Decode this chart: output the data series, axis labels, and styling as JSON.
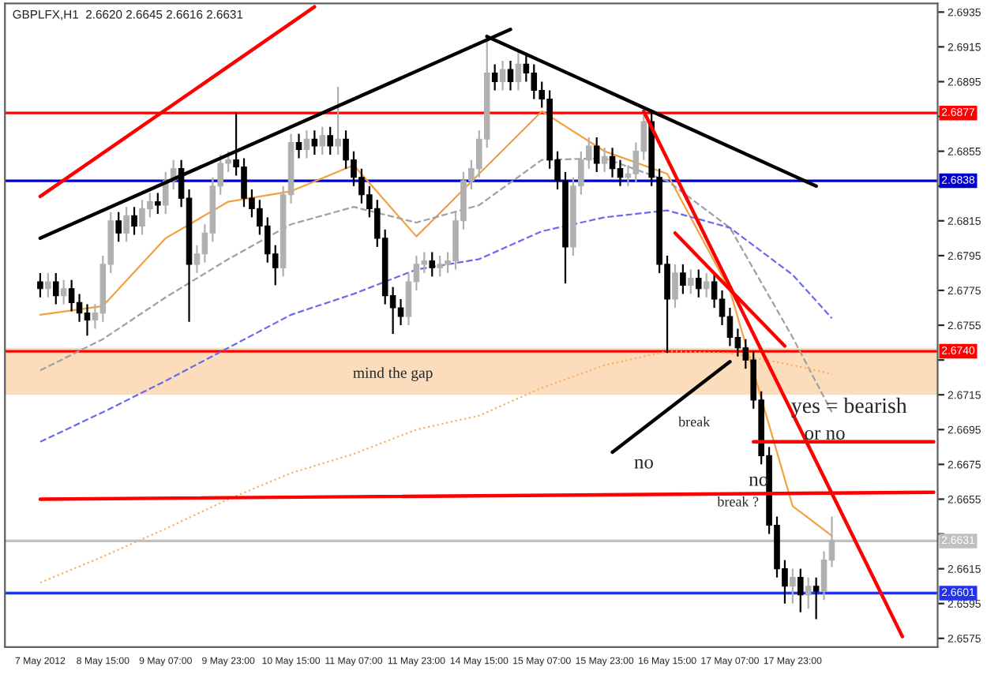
{
  "chart_data": {
    "type": "candlestick",
    "title": "GBPLFX,H1  2.6620 2.6645 2.6616 2.6631",
    "categories": [
      "7 May 2012",
      null,
      null,
      null,
      null,
      null,
      null,
      null,
      "8 May 15:00",
      null,
      null,
      null,
      null,
      null,
      null,
      null,
      "9 May 07:00",
      null,
      null,
      null,
      null,
      null,
      null,
      null,
      "9 May 23:00",
      null,
      null,
      null,
      null,
      null,
      null,
      null,
      "10 May 15:00",
      null,
      null,
      null,
      null,
      null,
      null,
      null,
      "11 May 07:00",
      null,
      null,
      null,
      null,
      null,
      null,
      null,
      "11 May 23:00",
      null,
      null,
      null,
      null,
      null,
      null,
      null,
      "14 May 15:00",
      null,
      null,
      null,
      null,
      null,
      null,
      null,
      "15 May 07:00",
      null,
      null,
      null,
      null,
      null,
      null,
      null,
      "15 May 23:00",
      null,
      null,
      null,
      null,
      null,
      null,
      null,
      "16 May 15:00",
      null,
      null,
      null,
      null,
      null,
      null,
      null,
      "17 May 07:00",
      null,
      null,
      null,
      null,
      null,
      null,
      null,
      "17 May 23:00",
      null,
      null,
      null,
      null,
      null,
      null,
      null,
      null,
      null,
      null,
      null,
      null,
      null,
      null,
      null,
      null,
      null,
      null
    ],
    "ohlc": [
      [
        2.678,
        2.6785,
        2.6771,
        2.6776
      ],
      [
        2.6776,
        2.6785,
        2.6771,
        2.678
      ],
      [
        2.678,
        2.6785,
        2.6767,
        2.6772
      ],
      [
        2.6772,
        2.6781,
        2.6767,
        2.6776
      ],
      [
        2.6776,
        2.6781,
        2.6763,
        2.6768
      ],
      [
        2.6768,
        2.6773,
        2.6757,
        2.6762
      ],
      [
        2.6762,
        2.6767,
        2.6749,
        2.6758
      ],
      [
        2.6758,
        2.6767,
        2.6753,
        2.6762
      ],
      [
        2.6762,
        2.6795,
        2.6757,
        2.679
      ],
      [
        2.679,
        2.682,
        2.6785,
        2.6815
      ],
      [
        2.6815,
        2.682,
        2.6803,
        2.6808
      ],
      [
        2.6808,
        2.6823,
        2.6803,
        2.6818
      ],
      [
        2.6818,
        2.6823,
        2.6807,
        2.6812
      ],
      [
        2.6812,
        2.6827,
        2.6807,
        2.6822
      ],
      [
        2.6822,
        2.6831,
        2.6817,
        2.6826
      ],
      [
        2.6826,
        2.6831,
        2.6819,
        2.6824
      ],
      [
        2.6824,
        2.6843,
        2.6819,
        2.6838
      ],
      [
        2.6838,
        2.685,
        2.6833,
        2.6845
      ],
      [
        2.6845,
        2.685,
        2.6823,
        2.6828
      ],
      [
        2.6828,
        2.6833,
        2.6757,
        2.679
      ],
      [
        2.679,
        2.6801,
        2.6785,
        2.6796
      ],
      [
        2.6796,
        2.6813,
        2.6791,
        2.6808
      ],
      [
        2.6808,
        2.684,
        2.6803,
        2.6835
      ],
      [
        2.6835,
        2.6853,
        2.683,
        2.6848
      ],
      [
        2.6848,
        2.6855,
        2.6843,
        2.685
      ],
      [
        2.685,
        2.6877,
        2.6841,
        2.6846
      ],
      [
        2.6846,
        2.6851,
        2.6823,
        2.6828
      ],
      [
        2.6828,
        2.6833,
        2.6817,
        2.6822
      ],
      [
        2.6822,
        2.6827,
        2.6807,
        2.6812
      ],
      [
        2.6812,
        2.6817,
        2.6791,
        2.6796
      ],
      [
        2.6796,
        2.6801,
        2.6778,
        2.6788
      ],
      [
        2.6788,
        2.6835,
        2.6783,
        2.683
      ],
      [
        2.683,
        2.6865,
        2.6825,
        2.686
      ],
      [
        2.686,
        2.6865,
        2.6851,
        2.6856
      ],
      [
        2.6856,
        2.6867,
        2.6851,
        2.6862
      ],
      [
        2.6862,
        2.6867,
        2.6853,
        2.6858
      ],
      [
        2.6858,
        2.6869,
        2.6853,
        2.6864
      ],
      [
        2.6864,
        2.6869,
        2.6853,
        2.6858
      ],
      [
        2.6858,
        2.6892,
        2.6853,
        2.6862
      ],
      [
        2.6862,
        2.6867,
        2.6845,
        2.685
      ],
      [
        2.685,
        2.6855,
        2.6835,
        2.684
      ],
      [
        2.684,
        2.6845,
        2.6825,
        2.683
      ],
      [
        2.683,
        2.6835,
        2.6817,
        2.6822
      ],
      [
        2.6822,
        2.6827,
        2.68,
        2.6805
      ],
      [
        2.6805,
        2.681,
        2.6767,
        2.6772
      ],
      [
        2.6772,
        2.6777,
        2.675,
        2.6765
      ],
      [
        2.6765,
        2.677,
        2.6755,
        2.676
      ],
      [
        2.676,
        2.6785,
        2.6755,
        2.678
      ],
      [
        2.678,
        2.6795,
        2.6775,
        2.679
      ],
      [
        2.679,
        2.6797,
        2.6785,
        2.6792
      ],
      [
        2.6792,
        2.6797,
        2.6783,
        2.6788
      ],
      [
        2.6788,
        2.6795,
        2.6783,
        2.679
      ],
      [
        2.679,
        2.6797,
        2.6785,
        2.6792
      ],
      [
        2.6792,
        2.682,
        2.6787,
        2.6815
      ],
      [
        2.6815,
        2.6843,
        2.681,
        2.6838
      ],
      [
        2.6838,
        2.685,
        2.6833,
        2.6845
      ],
      [
        2.6845,
        2.6867,
        2.684,
        2.6862
      ],
      [
        2.6862,
        2.692,
        2.6857,
        2.69
      ],
      [
        2.69,
        2.6905,
        2.689,
        2.6895
      ],
      [
        2.6895,
        2.6907,
        2.689,
        2.6902
      ],
      [
        2.6902,
        2.6907,
        2.689,
        2.6895
      ],
      [
        2.6895,
        2.6912,
        2.689,
        2.6905
      ],
      [
        2.6905,
        2.691,
        2.6895,
        2.69
      ],
      [
        2.69,
        2.6905,
        2.6885,
        2.689
      ],
      [
        2.689,
        2.6895,
        2.688,
        2.6885
      ],
      [
        2.6885,
        2.689,
        2.6845,
        2.685
      ],
      [
        2.685,
        2.6855,
        2.6833,
        2.6838
      ],
      [
        2.6838,
        2.6843,
        2.6779,
        2.68
      ],
      [
        2.68,
        2.684,
        2.6795,
        2.6835
      ],
      [
        2.6835,
        2.6855,
        2.683,
        2.685
      ],
      [
        2.685,
        2.6863,
        2.6845,
        2.6858
      ],
      [
        2.6858,
        2.6863,
        2.6843,
        2.6848
      ],
      [
        2.6848,
        2.6857,
        2.6843,
        2.6852
      ],
      [
        2.6852,
        2.6857,
        2.684,
        2.6845
      ],
      [
        2.6845,
        2.685,
        2.6835,
        2.684
      ],
      [
        2.684,
        2.6847,
        2.6835,
        2.6842
      ],
      [
        2.6842,
        2.686,
        2.6837,
        2.6855
      ],
      [
        2.6855,
        2.6878,
        2.685,
        2.6872
      ],
      [
        2.6872,
        2.6877,
        2.6835,
        2.684
      ],
      [
        2.684,
        2.6845,
        2.6785,
        2.679
      ],
      [
        2.679,
        2.6795,
        2.6739,
        2.677
      ],
      [
        2.677,
        2.679,
        2.6765,
        2.6785
      ],
      [
        2.6785,
        2.679,
        2.6773,
        2.6778
      ],
      [
        2.6778,
        2.6787,
        2.6773,
        2.6782
      ],
      [
        2.6782,
        2.6787,
        2.6771,
        2.6776
      ],
      [
        2.6776,
        2.6785,
        2.6771,
        2.678
      ],
      [
        2.678,
        2.6785,
        2.6765,
        2.677
      ],
      [
        2.677,
        2.6775,
        2.6755,
        2.676
      ],
      [
        2.676,
        2.6765,
        2.6743,
        2.6748
      ],
      [
        2.6748,
        2.6753,
        2.6737,
        2.6742
      ],
      [
        2.6742,
        2.6747,
        2.673,
        2.6735
      ],
      [
        2.6735,
        2.674,
        2.6707,
        2.6712
      ],
      [
        2.6712,
        2.6717,
        2.6675,
        2.668
      ],
      [
        2.668,
        2.6685,
        2.6635,
        2.664
      ],
      [
        2.664,
        2.6645,
        2.661,
        2.6615
      ],
      [
        2.6615,
        2.662,
        2.6595,
        2.6605
      ],
      [
        2.6605,
        2.6615,
        2.6595,
        2.661
      ],
      [
        2.661,
        2.6615,
        2.659,
        2.66
      ],
      [
        2.66,
        2.661,
        2.6592,
        2.6605
      ],
      [
        2.6605,
        2.661,
        2.6586,
        2.6602
      ],
      [
        2.6602,
        2.6625,
        2.6597,
        2.662
      ],
      [
        2.662,
        2.6645,
        2.6616,
        2.6631
      ],
      null,
      null,
      null,
      null,
      null,
      null,
      null,
      null,
      null,
      null,
      null,
      null,
      null
    ],
    "series": [
      {
        "type": "line",
        "color": "#f4a040",
        "line_style": "solid",
        "values": [
          2.6761,
          null,
          null,
          null,
          null,
          null,
          null,
          null,
          2.6766,
          null,
          null,
          null,
          null,
          null,
          null,
          null,
          2.6805,
          null,
          null,
          null,
          null,
          null,
          null,
          null,
          2.6826,
          null,
          null,
          null,
          null,
          null,
          null,
          null,
          2.6832,
          null,
          null,
          null,
          null,
          null,
          null,
          null,
          2.6847,
          null,
          null,
          null,
          null,
          null,
          null,
          null,
          2.6806,
          null,
          null,
          null,
          null,
          null,
          null,
          null,
          2.6842,
          null,
          null,
          null,
          null,
          null,
          null,
          null,
          2.6878,
          null,
          null,
          null,
          null,
          null,
          null,
          null,
          2.6855,
          null,
          null,
          null,
          null,
          null,
          null,
          null,
          2.6842,
          null,
          null,
          null,
          null,
          null,
          null,
          null,
          2.6775,
          null,
          null,
          null,
          null,
          null,
          null,
          null,
          2.6651,
          null,
          null,
          null,
          null,
          2.6634,
          null,
          null,
          null,
          null,
          null,
          null,
          null,
          null,
          null,
          null,
          null,
          null,
          null
        ]
      },
      {
        "type": "line",
        "color": "#a0a0a0",
        "line_style": "dashed",
        "values": [
          2.6729,
          null,
          null,
          null,
          null,
          null,
          null,
          null,
          2.6747,
          null,
          null,
          null,
          null,
          null,
          null,
          null,
          2.6771,
          null,
          null,
          null,
          null,
          null,
          null,
          null,
          2.6793,
          null,
          null,
          null,
          null,
          null,
          null,
          null,
          2.6813,
          null,
          null,
          null,
          null,
          null,
          null,
          null,
          2.6823,
          null,
          null,
          null,
          null,
          null,
          null,
          null,
          2.6814,
          null,
          null,
          null,
          null,
          null,
          null,
          null,
          2.6824,
          null,
          null,
          null,
          null,
          null,
          null,
          null,
          2.685,
          null,
          null,
          null,
          null,
          null,
          null,
          null,
          2.6851,
          null,
          null,
          null,
          null,
          null,
          null,
          null,
          2.6838,
          null,
          null,
          null,
          null,
          null,
          null,
          null,
          2.6811,
          null,
          null,
          null,
          null,
          null,
          null,
          null,
          2.6748,
          null,
          null,
          null,
          null,
          2.6705,
          null,
          null,
          null,
          null,
          null,
          null,
          null,
          null,
          null,
          null,
          null,
          null,
          null
        ]
      },
      {
        "type": "line",
        "color": "#6a6af0",
        "line_style": "dashed",
        "values": [
          2.6688,
          null,
          null,
          null,
          null,
          null,
          null,
          null,
          2.6705,
          null,
          null,
          null,
          null,
          null,
          null,
          null,
          2.6723,
          null,
          null,
          null,
          null,
          null,
          null,
          null,
          2.6742,
          null,
          null,
          null,
          null,
          null,
          null,
          null,
          2.6761,
          null,
          null,
          null,
          null,
          null,
          null,
          null,
          2.6773,
          null,
          null,
          null,
          null,
          null,
          null,
          null,
          2.6787,
          null,
          null,
          null,
          null,
          null,
          null,
          null,
          2.6793,
          null,
          null,
          null,
          null,
          null,
          null,
          null,
          2.6809,
          null,
          null,
          null,
          null,
          null,
          null,
          null,
          2.6817,
          null,
          null,
          null,
          null,
          null,
          null,
          null,
          2.6821,
          null,
          null,
          null,
          null,
          null,
          null,
          null,
          2.6811,
          null,
          null,
          null,
          null,
          null,
          null,
          null,
          2.6784,
          null,
          null,
          null,
          null,
          2.6759,
          null,
          null,
          null,
          null,
          null,
          null,
          null,
          null,
          null,
          null,
          null,
          null,
          null
        ]
      },
      {
        "type": "line",
        "color": "#f8b060",
        "line_style": "dotted",
        "values": [
          2.6607,
          null,
          null,
          null,
          null,
          null,
          null,
          null,
          2.6622,
          null,
          null,
          null,
          null,
          null,
          null,
          null,
          2.6638,
          null,
          null,
          null,
          null,
          null,
          null,
          null,
          2.6655,
          null,
          null,
          null,
          null,
          null,
          null,
          null,
          2.667,
          null,
          null,
          null,
          null,
          null,
          null,
          null,
          2.6681,
          null,
          null,
          null,
          null,
          null,
          null,
          null,
          2.6695,
          null,
          null,
          null,
          null,
          null,
          null,
          null,
          2.6703,
          null,
          null,
          null,
          null,
          null,
          null,
          null,
          2.6719,
          null,
          null,
          null,
          null,
          null,
          null,
          null,
          2.6732,
          null,
          null,
          null,
          null,
          null,
          null,
          null,
          2.674,
          null,
          null,
          null,
          null,
          null,
          null,
          null,
          2.6739,
          null,
          null,
          null,
          null,
          null,
          null,
          null,
          2.6732,
          null,
          null,
          null,
          null,
          2.6727,
          null,
          null,
          null,
          null,
          null,
          null,
          null,
          null,
          null,
          null,
          null,
          null,
          null
        ]
      },
      {
        "type": "line",
        "color": "#ff0000",
        "line_style": "solid",
        "values": [
          2.6829,
          null,
          null,
          null,
          null,
          null,
          null,
          null,
          null,
          null,
          null,
          null,
          null,
          null,
          null,
          null,
          null,
          null,
          null,
          null,
          null,
          null,
          null,
          null,
          null,
          null,
          null,
          null,
          null,
          null,
          null,
          null,
          null,
          null,
          null,
          2.6938,
          null,
          null,
          null,
          null,
          null,
          null,
          null,
          null,
          null,
          null,
          null,
          null,
          null,
          null,
          null,
          null,
          null,
          null,
          null,
          null,
          null,
          null,
          null,
          null,
          null,
          null,
          null,
          null,
          null,
          null,
          null,
          null,
          null,
          null,
          null,
          null,
          null,
          null,
          null,
          null,
          null,
          null,
          null,
          null,
          null,
          null,
          null,
          null,
          null,
          null,
          null,
          null,
          null,
          null,
          null,
          null,
          null,
          null,
          null,
          null,
          null,
          null,
          null,
          null,
          null,
          null,
          null,
          null,
          null,
          null,
          null,
          null,
          null,
          null,
          null,
          null,
          null,
          null,
          null
        ]
      },
      {
        "type": "line",
        "color": "#000000",
        "line_style": "solid",
        "values": [
          2.6805,
          null,
          null,
          null,
          null,
          null,
          null,
          null,
          null,
          null,
          null,
          null,
          null,
          null,
          null,
          null,
          null,
          null,
          null,
          null,
          null,
          null,
          null,
          null,
          null,
          null,
          null,
          null,
          null,
          null,
          null,
          null,
          null,
          null,
          null,
          null,
          null,
          null,
          null,
          null,
          null,
          null,
          null,
          null,
          null,
          null,
          null,
          null,
          null,
          null,
          null,
          null,
          null,
          null,
          null,
          null,
          null,
          null,
          null,
          null,
          2.6925,
          null,
          null,
          null,
          null,
          null,
          null,
          null,
          null,
          null,
          null,
          null,
          null,
          null,
          null,
          null,
          null,
          null,
          null,
          null,
          null,
          null,
          null,
          null,
          null,
          null,
          null,
          null,
          null,
          null,
          null,
          null,
          null,
          null,
          null,
          null,
          null,
          null,
          null,
          null,
          null,
          null,
          null,
          null,
          null,
          null,
          null,
          null,
          null,
          null,
          null,
          null,
          null,
          null,
          null
        ]
      },
      {
        "type": "line",
        "color": "#000000",
        "line_style": "solid",
        "values": [
          null,
          null,
          null,
          null,
          null,
          null,
          null,
          null,
          null,
          null,
          null,
          null,
          null,
          null,
          null,
          null,
          null,
          null,
          null,
          null,
          null,
          null,
          null,
          null,
          null,
          null,
          null,
          null,
          null,
          null,
          null,
          null,
          null,
          null,
          null,
          null,
          null,
          null,
          null,
          null,
          null,
          null,
          null,
          null,
          null,
          null,
          null,
          null,
          null,
          null,
          null,
          null,
          null,
          null,
          null,
          null,
          null,
          2.6921,
          null,
          null,
          null,
          null,
          null,
          null,
          null,
          null,
          null,
          null,
          null,
          null,
          null,
          null,
          null,
          null,
          null,
          null,
          null,
          null,
          null,
          null,
          null,
          null,
          null,
          null,
          null,
          null,
          null,
          null,
          null,
          null,
          null,
          null,
          null,
          null,
          null,
          null,
          null,
          null,
          null,
          2.6835,
          null,
          null,
          null,
          null,
          null,
          null,
          null,
          null,
          null,
          null,
          null,
          null,
          null,
          null,
          null
        ]
      },
      {
        "type": "line",
        "color": "#ff0000",
        "line_style": "solid",
        "values": [
          null,
          null,
          null,
          null,
          null,
          null,
          null,
          null,
          null,
          null,
          null,
          null,
          null,
          null,
          null,
          null,
          null,
          null,
          null,
          null,
          null,
          null,
          null,
          null,
          null,
          null,
          null,
          null,
          null,
          null,
          null,
          null,
          null,
          null,
          null,
          null,
          null,
          null,
          null,
          null,
          null,
          null,
          null,
          null,
          null,
          null,
          null,
          null,
          null,
          null,
          null,
          null,
          null,
          null,
          null,
          null,
          null,
          null,
          null,
          null,
          null,
          null,
          null,
          null,
          null,
          null,
          null,
          null,
          null,
          null,
          null,
          null,
          null,
          null,
          null,
          null,
          null,
          2.6878,
          null,
          null,
          null,
          null,
          null,
          null,
          null,
          null,
          null,
          null,
          null,
          null,
          null,
          null,
          null,
          null,
          null,
          null,
          null,
          null,
          null,
          null,
          null,
          null,
          null,
          null,
          null,
          null,
          null,
          null,
          null,
          null,
          2.6576,
          null,
          null,
          null,
          null
        ]
      },
      {
        "type": "line",
        "color": "#ff0000",
        "line_style": "solid",
        "values": [
          null,
          null,
          null,
          null,
          null,
          null,
          null,
          null,
          null,
          null,
          null,
          null,
          null,
          null,
          null,
          null,
          null,
          null,
          null,
          null,
          null,
          null,
          null,
          null,
          null,
          null,
          null,
          null,
          null,
          null,
          null,
          null,
          null,
          null,
          null,
          null,
          null,
          null,
          null,
          null,
          null,
          null,
          null,
          null,
          null,
          null,
          null,
          null,
          null,
          null,
          null,
          null,
          null,
          null,
          null,
          null,
          null,
          null,
          null,
          null,
          null,
          null,
          null,
          null,
          null,
          null,
          null,
          null,
          null,
          null,
          null,
          null,
          null,
          null,
          null,
          null,
          null,
          null,
          null,
          null,
          null,
          2.6808,
          null,
          null,
          null,
          null,
          null,
          null,
          null,
          null,
          null,
          null,
          null,
          null,
          null,
          2.6743,
          null,
          null,
          null,
          null,
          null,
          null,
          null,
          null,
          null,
          null,
          null,
          null,
          null,
          null,
          null,
          null,
          null,
          null,
          null
        ]
      },
      {
        "type": "line",
        "color": "#000000",
        "line_style": "solid",
        "values": [
          null,
          null,
          null,
          null,
          null,
          null,
          null,
          null,
          null,
          null,
          null,
          null,
          null,
          null,
          null,
          null,
          null,
          null,
          null,
          null,
          null,
          null,
          null,
          null,
          null,
          null,
          null,
          null,
          null,
          null,
          null,
          null,
          null,
          null,
          null,
          null,
          null,
          null,
          null,
          null,
          null,
          null,
          null,
          null,
          null,
          null,
          null,
          null,
          null,
          null,
          null,
          null,
          null,
          null,
          null,
          null,
          null,
          null,
          null,
          null,
          null,
          null,
          null,
          null,
          null,
          null,
          null,
          null,
          null,
          null,
          null,
          null,
          null,
          2.6682,
          null,
          null,
          null,
          null,
          null,
          null,
          null,
          null,
          null,
          null,
          null,
          null,
          null,
          null,
          2.6734,
          null,
          null,
          null,
          null,
          null,
          null,
          null,
          null,
          null,
          null,
          null,
          null,
          null,
          null,
          null,
          null,
          null,
          null,
          null,
          null,
          null,
          null,
          null,
          null,
          null,
          null
        ]
      },
      {
        "type": "line",
        "color": "#ff0000",
        "line_style": "solid",
        "values": [
          null,
          null,
          null,
          null,
          null,
          null,
          null,
          null,
          null,
          null,
          null,
          null,
          null,
          null,
          null,
          null,
          null,
          null,
          null,
          null,
          null,
          null,
          null,
          null,
          null,
          null,
          null,
          null,
          null,
          null,
          null,
          null,
          null,
          null,
          null,
          null,
          null,
          null,
          null,
          null,
          null,
          null,
          null,
          null,
          null,
          null,
          null,
          null,
          null,
          null,
          null,
          null,
          null,
          null,
          null,
          null,
          null,
          null,
          null,
          null,
          null,
          null,
          null,
          null,
          null,
          null,
          null,
          null,
          null,
          null,
          null,
          null,
          null,
          null,
          null,
          null,
          null,
          null,
          null,
          null,
          null,
          null,
          null,
          null,
          null,
          null,
          null,
          null,
          null,
          null,
          null,
          2.6688,
          null,
          null,
          null,
          null,
          null,
          null,
          null,
          null,
          null,
          null,
          null,
          null,
          null,
          null,
          null,
          null,
          null,
          null,
          null,
          null,
          null,
          null,
          2.6688
        ]
      },
      {
        "type": "line",
        "color": "#ff0000",
        "line_style": "solid",
        "values": [
          2.6655,
          null,
          null,
          null,
          null,
          null,
          null,
          null,
          null,
          null,
          null,
          null,
          null,
          null,
          null,
          null,
          null,
          null,
          null,
          null,
          null,
          null,
          null,
          null,
          null,
          null,
          null,
          null,
          null,
          null,
          null,
          null,
          null,
          null,
          null,
          null,
          null,
          null,
          null,
          null,
          null,
          null,
          null,
          null,
          null,
          null,
          null,
          null,
          null,
          null,
          null,
          null,
          null,
          null,
          null,
          null,
          null,
          null,
          null,
          null,
          null,
          null,
          null,
          null,
          null,
          null,
          null,
          null,
          null,
          null,
          null,
          null,
          null,
          null,
          null,
          null,
          null,
          null,
          null,
          null,
          null,
          null,
          null,
          null,
          null,
          null,
          null,
          null,
          null,
          null,
          null,
          null,
          null,
          null,
          null,
          null,
          null,
          null,
          null,
          null,
          null,
          null,
          null,
          null,
          null,
          null,
          null,
          null,
          null,
          null,
          null,
          null,
          null,
          null,
          2.6659
        ]
      }
    ],
    "ref_lines": [
      {
        "axis": "y",
        "value": 2.6877,
        "label": "2.6877",
        "color": "#ff0000"
      },
      {
        "axis": "y",
        "value": 2.6838,
        "label": "2.6838",
        "color": "#0000cc"
      },
      {
        "axis": "y",
        "value": 2.674,
        "label": "2.6740",
        "color": "#ff0000"
      },
      {
        "axis": "y",
        "value": 2.6631,
        "label": "2.6631",
        "color": "#c0c0c0"
      },
      {
        "axis": "y",
        "value": 2.6601,
        "label": "2.6601",
        "color": "#2233ee"
      }
    ],
    "bands": [
      {
        "axis": "y",
        "from": 2.6715,
        "to": 2.6742,
        "label": "mind the gap",
        "color": "#fbd9b5"
      }
    ],
    "annotations": [
      "break",
      "no",
      "break ?",
      "yes = bearish",
      "or no",
      "no"
    ],
    "ylim": [
      2.657,
      2.694
    ],
    "yticks": [
      2.6935,
      2.6915,
      2.6895,
      {
        "value": 2.6875,
        "label": null
      },
      2.6855,
      {
        "value": 2.6835,
        "label": null
      },
      2.6815,
      2.6795,
      2.6775,
      2.6755,
      {
        "value": 2.6735,
        "label": null
      },
      2.6715,
      2.6695,
      2.6675,
      2.6655,
      {
        "value": 2.6635,
        "label": null
      },
      2.6615,
      2.6595,
      2.6575
    ],
    "grid": false,
    "legend": false
  }
}
